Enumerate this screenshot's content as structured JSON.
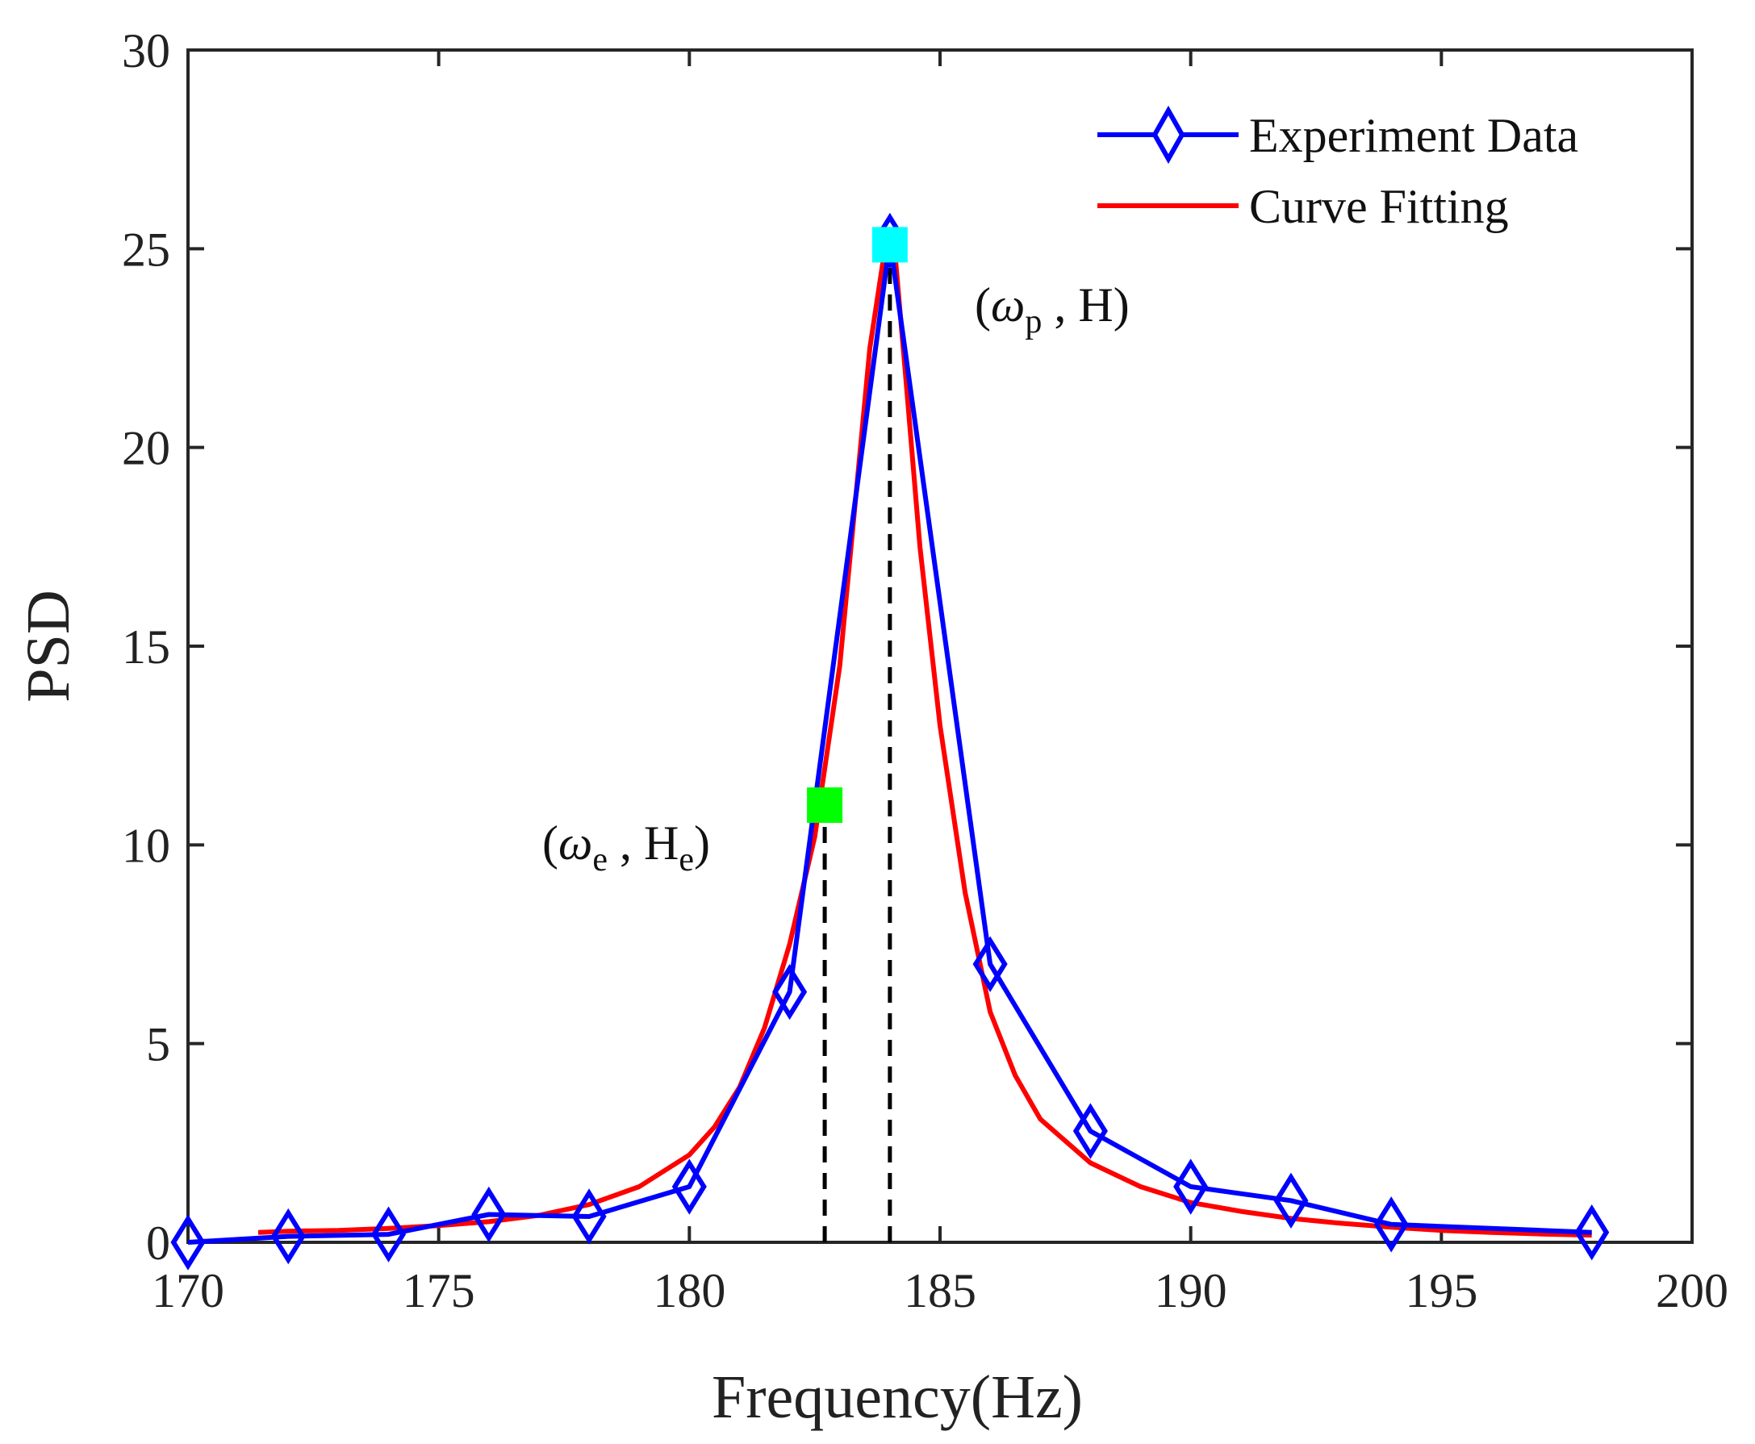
{
  "colors": {
    "experiment": "#0000ff",
    "fitting": "#ff0000",
    "peak_marker": "#00ffff",
    "half_marker": "#00ff00",
    "axis": "#262626",
    "guide": "#000000"
  },
  "chart_data": {
    "type": "line",
    "title": "",
    "xlabel": "Frequency(Hz)",
    "ylabel": "PSD",
    "xlim": [
      170,
      200
    ],
    "ylim": [
      0,
      30
    ],
    "xticks": [
      170,
      175,
      180,
      185,
      190,
      195,
      200
    ],
    "yticks": [
      0,
      5,
      10,
      15,
      20,
      25,
      30
    ],
    "grid": false,
    "legend_position": "top-right",
    "series": [
      {
        "name": "Experiment Data",
        "style": "line-diamond",
        "x": [
          170,
          172,
          174,
          176,
          178,
          180,
          182,
          184,
          186,
          188,
          190,
          192,
          194,
          198
        ],
        "y": [
          0.0,
          0.15,
          0.2,
          0.7,
          0.65,
          1.4,
          6.3,
          25.2,
          7.0,
          2.8,
          1.4,
          1.05,
          0.45,
          0.25
        ]
      },
      {
        "name": "Curve Fitting",
        "style": "line",
        "x": [
          171.4,
          172,
          173,
          174,
          175,
          176,
          177,
          178,
          179,
          180,
          180.5,
          181,
          181.5,
          182,
          182.5,
          183,
          183.3,
          183.6,
          183.9,
          184.1,
          184.3,
          184.6,
          185,
          185.5,
          186,
          186.5,
          187,
          188,
          189,
          190,
          191,
          192,
          193,
          194,
          195,
          196,
          197,
          198
        ],
        "y": [
          0.25,
          0.28,
          0.3,
          0.35,
          0.42,
          0.52,
          0.68,
          0.95,
          1.4,
          2.2,
          2.9,
          3.9,
          5.4,
          7.5,
          10.2,
          14.5,
          18.5,
          22.5,
          25.0,
          24.9,
          22.0,
          17.5,
          13.0,
          8.8,
          5.8,
          4.2,
          3.1,
          2.0,
          1.4,
          1.0,
          0.78,
          0.6,
          0.48,
          0.38,
          0.3,
          0.25,
          0.21,
          0.18
        ]
      }
    ],
    "markers": [
      {
        "name": "peak",
        "x": 184,
        "y": 25.1,
        "label": "(ωp , H)"
      },
      {
        "name": "half-power",
        "x": 182.7,
        "y": 11.0,
        "label": "(ωe , He)"
      }
    ],
    "guides": [
      {
        "x": 182.7,
        "y_top": 11.0
      },
      {
        "x": 184.0,
        "y_top": 25.1
      }
    ],
    "annotations": {
      "peak": {
        "open": "(",
        "symbol": "ω",
        "sub": "p",
        "sep": " , ",
        "value": "H",
        "close": ")"
      },
      "half": {
        "open": "(",
        "symbol": "ω",
        "sub": "e",
        "sep": " , ",
        "value": "H",
        "value_sub": "e",
        "close": ")"
      }
    }
  }
}
